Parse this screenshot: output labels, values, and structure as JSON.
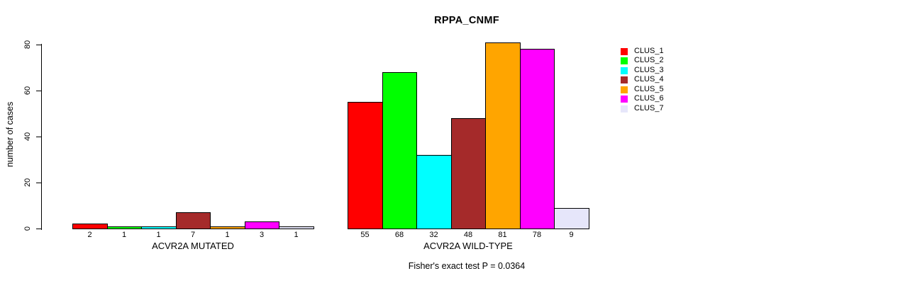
{
  "chart_data": {
    "type": "bar",
    "title": "RPPA_CNMF",
    "ylabel": "number of cases",
    "xlabel": "",
    "ylim": [
      0,
      80
    ],
    "yticks": [
      0,
      20,
      40,
      60,
      80
    ],
    "grid": false,
    "legend_position": "right",
    "legend": [
      "CLUS_1",
      "CLUS_2",
      "CLUS_3",
      "CLUS_4",
      "CLUS_5",
      "CLUS_6",
      "CLUS_7"
    ],
    "colors": [
      "#ff0000",
      "#00ff00",
      "#00ffff",
      "#a52a2a",
      "#ffa500",
      "#ff00ff",
      "#e6e6fa"
    ],
    "bar_border_color": "#000000",
    "groups": [
      {
        "label": "ACVR2A MUTATED",
        "values": [
          2,
          1,
          1,
          7,
          1,
          3,
          1
        ]
      },
      {
        "label": "ACVR2A WILD-TYPE",
        "values": [
          55,
          68,
          32,
          48,
          81,
          78,
          9
        ]
      }
    ],
    "bar_value_labels_shown": true,
    "footnote": "Fisher's exact test P = 0.0364"
  }
}
